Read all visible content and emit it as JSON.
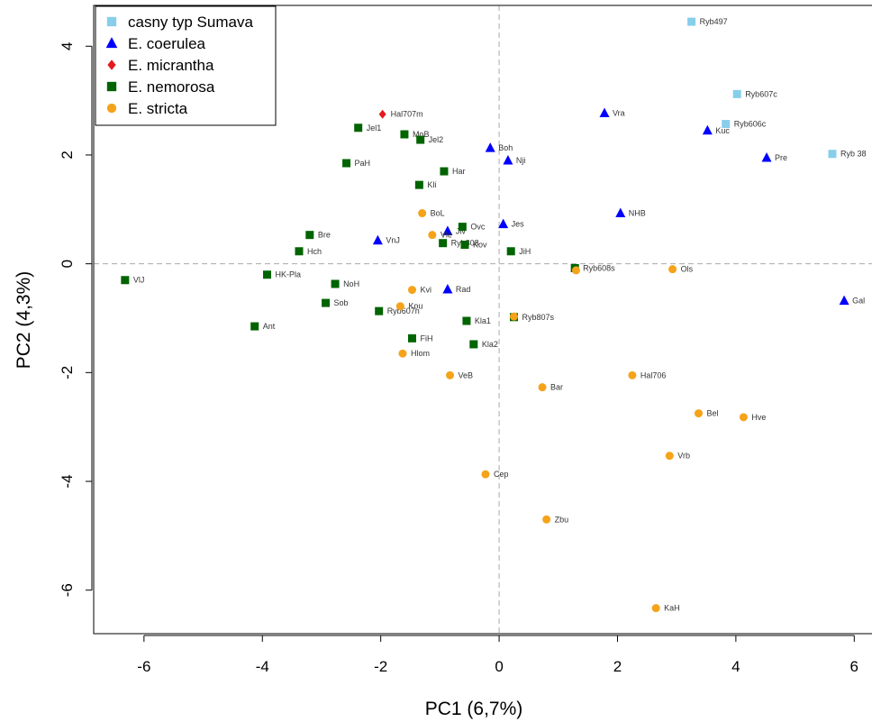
{
  "chart_data": {
    "type": "scatter",
    "xlabel": "PC1 (6,7%)",
    "ylabel": "PC2 (4,3%)",
    "xlim": [
      -6.85,
      6.3
    ],
    "ylim": [
      -6.8,
      4.75
    ],
    "xticks": [
      -6,
      -4,
      -2,
      0,
      2,
      4,
      6
    ],
    "yticks": [
      -6,
      -4,
      -2,
      0,
      2,
      4
    ],
    "reference_lines": {
      "x": 0,
      "y": 0,
      "style": "dashed"
    },
    "grid": false,
    "legend_position": "top-left",
    "series": [
      {
        "name": "casny typ Sumava",
        "marker": "square",
        "color": "#87ceeb",
        "points": [
          {
            "label": "Ryb497",
            "x": 3.25,
            "y": 4.45
          },
          {
            "label": "Ryb607c",
            "x": 4.02,
            "y": 3.12
          },
          {
            "label": "Ryb606c",
            "x": 3.83,
            "y": 2.57
          },
          {
            "label": "Ryb 38",
            "x": 5.63,
            "y": 2.02
          }
        ]
      },
      {
        "name": "E. coerulea",
        "marker": "triangle",
        "color": "#0000ff",
        "points": [
          {
            "label": "Vra",
            "x": 1.78,
            "y": 2.77
          },
          {
            "label": "Kuc",
            "x": 3.52,
            "y": 2.45
          },
          {
            "label": "Pre",
            "x": 4.52,
            "y": 1.95
          },
          {
            "label": "Boh",
            "x": -0.15,
            "y": 2.13
          },
          {
            "label": "Nji",
            "x": 0.15,
            "y": 1.9
          },
          {
            "label": "NHB",
            "x": 2.05,
            "y": 0.93
          },
          {
            "label": "Jes",
            "x": 0.07,
            "y": 0.73
          },
          {
            "label": "VnJ",
            "x": -2.05,
            "y": 0.43
          },
          {
            "label": "Jiv",
            "x": -0.87,
            "y": 0.6
          },
          {
            "label": "Rad",
            "x": -0.87,
            "y": -0.47
          },
          {
            "label": "Gal",
            "x": 5.83,
            "y": -0.68
          }
        ]
      },
      {
        "name": "E. micrantha",
        "marker": "diamond",
        "color": "#e41a1c",
        "points": [
          {
            "label": "Hal707m",
            "x": -1.97,
            "y": 2.75
          }
        ]
      },
      {
        "name": "E. nemorosa",
        "marker": "square",
        "color": "#006400",
        "points": [
          {
            "label": "Jel1",
            "x": -2.38,
            "y": 2.5
          },
          {
            "label": "MoB",
            "x": -1.6,
            "y": 2.38
          },
          {
            "label": "Jel2",
            "x": -1.33,
            "y": 2.28
          },
          {
            "label": "PaH",
            "x": -2.58,
            "y": 1.85
          },
          {
            "label": "Har",
            "x": -0.93,
            "y": 1.7
          },
          {
            "label": "Kli",
            "x": -1.35,
            "y": 1.45
          },
          {
            "label": "Ovc",
            "x": -0.62,
            "y": 0.68
          },
          {
            "label": "Bre",
            "x": -3.2,
            "y": 0.53
          },
          {
            "label": "Ryb808",
            "x": -0.95,
            "y": 0.38
          },
          {
            "label": "Kov",
            "x": -0.58,
            "y": 0.35
          },
          {
            "label": "Hch",
            "x": -3.38,
            "y": 0.23
          },
          {
            "label": "JiH",
            "x": 0.2,
            "y": 0.23
          },
          {
            "label": "VlJ",
            "x": -6.32,
            "y": -0.3
          },
          {
            "label": "HK-Pla",
            "x": -3.92,
            "y": -0.2
          },
          {
            "label": "NoH",
            "x": -2.77,
            "y": -0.37
          },
          {
            "label": "Sob",
            "x": -2.93,
            "y": -0.72
          },
          {
            "label": "Ryb607n",
            "x": -2.03,
            "y": -0.87
          },
          {
            "label": "Kla1",
            "x": -0.55,
            "y": -1.05
          },
          {
            "label": "Ant",
            "x": -4.13,
            "y": -1.15
          },
          {
            "label": "FiH",
            "x": -1.47,
            "y": -1.37
          },
          {
            "label": "Kla2",
            "x": -0.43,
            "y": -1.48
          },
          {
            "label": "Ryb608s",
            "x": 1.28,
            "y": -0.08
          },
          {
            "label": "Ryb807s",
            "x": 0.25,
            "y": -0.98
          }
        ]
      },
      {
        "name": "E. stricta",
        "marker": "circle",
        "color": "#f5a31a",
        "points": [
          {
            "label": "BoL",
            "x": -1.3,
            "y": 0.93
          },
          {
            "label": "Vle",
            "x": -1.13,
            "y": 0.53
          },
          {
            "label": "Ols",
            "x": 2.93,
            "y": -0.1
          },
          {
            "label": "Kvi",
            "x": -1.47,
            "y": -0.48
          },
          {
            "label": "Kou",
            "x": -1.67,
            "y": -0.78
          },
          {
            "label": "Hlom",
            "x": -1.63,
            "y": -1.65
          },
          {
            "label": "VeB",
            "x": -0.83,
            "y": -2.05
          },
          {
            "label": "Bar",
            "x": 0.73,
            "y": -2.27
          },
          {
            "label": "Hal706",
            "x": 2.25,
            "y": -2.05
          },
          {
            "label": "Bel",
            "x": 3.37,
            "y": -2.75
          },
          {
            "label": "Hve",
            "x": 4.13,
            "y": -2.82
          },
          {
            "label": "Vrb",
            "x": 2.88,
            "y": -3.53
          },
          {
            "label": "Cep",
            "x": -0.23,
            "y": -3.87
          },
          {
            "label": "Zbu",
            "x": 0.8,
            "y": -4.7
          },
          {
            "label": "KaH",
            "x": 2.65,
            "y": -6.33
          },
          {
            "label": "",
            "x": 1.3,
            "y": -0.12
          },
          {
            "label": "",
            "x": 0.25,
            "y": -0.97
          }
        ]
      }
    ]
  }
}
